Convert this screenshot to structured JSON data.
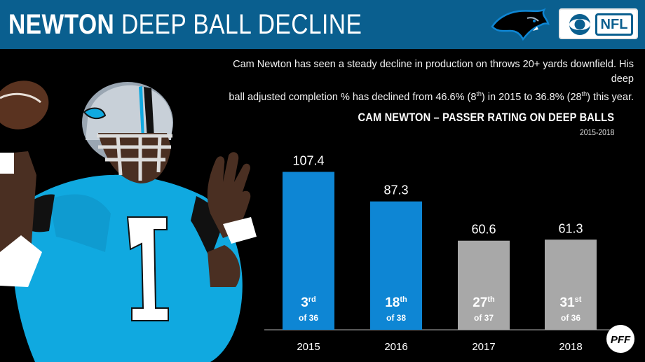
{
  "header": {
    "title_bold": "NEWTON",
    "title_light": "DEEP BALL DECLINE",
    "header_color": "#0a5f8f"
  },
  "logos": {
    "team_logo": "panthers-logo-icon",
    "network_logo": "cbs-eye-icon",
    "network_text": "NFL",
    "stats_logo": "pff-logo-icon"
  },
  "description": {
    "line1": "Cam Newton has seen a steady decline in production on throws 20+ yards downfield.  His deep",
    "line2_a": "ball adjusted completion % has declined from 46.6% (8",
    "line2_sup1": "th",
    "line2_b": ") in 2015 to 36.8% (28",
    "line2_sup2": "th",
    "line2_c": ") this year."
  },
  "chart_data": {
    "type": "bar",
    "title": "CAM NEWTON – PASSER RATING ON DEEP BALLS",
    "subtitle": "2015-2018",
    "categories": [
      "2015",
      "2016",
      "2017",
      "2018"
    ],
    "values": [
      107.4,
      87.3,
      60.6,
      61.3
    ],
    "value_labels": [
      "107.4",
      "87.3",
      "60.6",
      "61.3"
    ],
    "rank_numbers": [
      "3",
      "18",
      "27",
      "31"
    ],
    "rank_suffixes": [
      "rd",
      "th",
      "th",
      "st"
    ],
    "rank_totals": [
      "of 36",
      "of 38",
      "of 37",
      "of 36"
    ],
    "bar_colors": [
      "#0e86d4",
      "#0e86d4",
      "#a8a8a8",
      "#a8a8a8"
    ],
    "ylim": [
      0,
      130
    ],
    "grid": false,
    "legend": "none"
  },
  "colors": {
    "accent_blue": "#0e86d4",
    "muted_gray": "#a8a8a8",
    "background": "#000000"
  }
}
